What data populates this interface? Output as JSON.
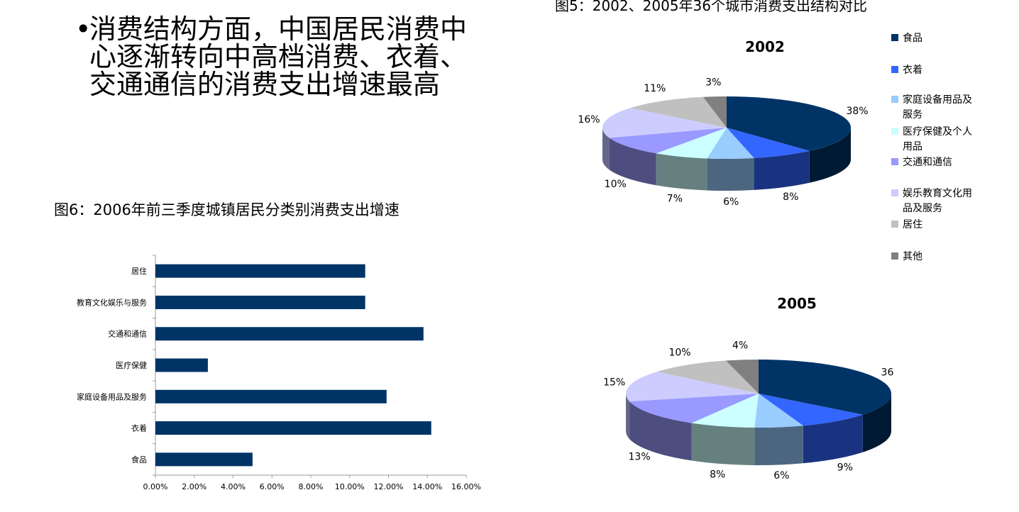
{
  "bullet": {
    "marker": "•",
    "text": "消费结构方面，中国居民消费中心逐渐转向中高档消费、衣着、交通通信的消费支出增速最高"
  },
  "fig6": {
    "title": "图6：2006年前三季度城镇居民分类别消费支出增速"
  },
  "fig5": {
    "title": "图5：2002、2005年36个城市消费支出结构对比"
  },
  "colors": {
    "bar": "#003366",
    "categories": [
      "#003366",
      "#3366ff",
      "#99ccff",
      "#ccffff",
      "#9999ff",
      "#ccccff",
      "#c0c0c0",
      "#808080"
    ],
    "sides": [
      "#001a33",
      "#1a3380",
      "#4d6680",
      "#668080",
      "#4d4d80",
      "#66668a",
      "#808080",
      "#404040"
    ]
  },
  "legend": [
    "食品",
    "衣着",
    "家庭设备用品及服务",
    "医疗保健及个人用品",
    "交通和通信",
    "娱乐教育文化用品及服务",
    "居住",
    "其他"
  ],
  "chart_data": [
    {
      "type": "bar",
      "orientation": "horizontal",
      "title": "图6：2006年前三季度城镇居民分类别消费支出增速",
      "categories": [
        "居住",
        "教育文化娱乐与服务",
        "交通和通信",
        "医疗保健",
        "家庭设备用品及服务",
        "衣着",
        "食品"
      ],
      "values": [
        10.8,
        10.8,
        13.8,
        2.7,
        11.9,
        14.2,
        5.0
      ],
      "xlim": [
        0,
        16
      ],
      "ticks": [
        "0.00%",
        "2.00%",
        "4.00%",
        "6.00%",
        "8.00%",
        "10.00%",
        "12.00%",
        "14.00%",
        "16.00%"
      ],
      "grid": false
    },
    {
      "type": "pie",
      "title": "2002",
      "categories": [
        "食品",
        "衣着",
        "家庭设备用品及服务",
        "医疗保健及个人用品",
        "交通和通信",
        "娱乐教育文化用品及服务",
        "居住",
        "其他"
      ],
      "values": [
        38,
        8,
        6,
        7,
        10,
        16,
        11,
        3
      ],
      "labels": [
        "38%",
        "8%",
        "6%",
        "7%",
        "10%",
        "16%",
        "11%",
        "3%"
      ]
    },
    {
      "type": "pie",
      "title": "2005",
      "categories": [
        "食品",
        "衣着",
        "家庭设备用品及服务",
        "医疗保健及个人用品",
        "交通和通信",
        "娱乐教育文化用品及服务",
        "居住",
        "其他"
      ],
      "values": [
        36,
        9,
        6,
        8,
        13,
        15,
        10,
        4
      ],
      "labels": [
        "36%",
        "9%",
        "6%",
        "8%",
        "13%",
        "15%",
        "10%",
        "4%"
      ]
    }
  ]
}
